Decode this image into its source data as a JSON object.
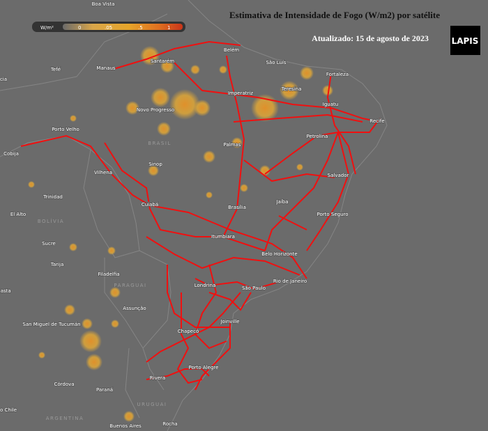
{
  "title": "Estimativa de Intensidade de Fogo (W/m2) por satélite",
  "updated": "Atualizado: 15 de agosto de 2023",
  "logo": "LAPIS",
  "legend": {
    "unit": "W/m²",
    "ticks": [
      "0",
      ".05",
      ".5",
      "1"
    ]
  },
  "places": [
    "Boa Vista",
    "Belém",
    "São Luís",
    "Fortaleza",
    "Manaus",
    "Santarém",
    "Tefé",
    "cia",
    "Imperatriz",
    "Teresina",
    "Iguatu",
    "Novo Progresso",
    "Recife",
    "Porto Velho",
    "Petrolina",
    "Palmas",
    "BRASIL",
    "Cobija",
    "Sinop",
    "Vilhena",
    "Salvador",
    "Trinidad",
    "Jaíba",
    "Cuiabá",
    "Brasília",
    "El Alto",
    "BOLÍVIA",
    "Porto Seguro",
    "Itumbiara",
    "Sucre",
    "Belo Horizonte",
    "Tarija",
    "Filadelfia",
    "Rio de Janeiro",
    "Londrina",
    "São Paulo",
    "PARAGUAI",
    "gasta",
    "Assunção",
    "San Miguel de Tucumán",
    "Joinville",
    "Chapecó",
    "Porto Alegre",
    "Rivera",
    "Córdova",
    "Paraná",
    "URUGUAI",
    "o Chile",
    "ARGENTINA",
    "Buenos Aires",
    "Rocha"
  ]
}
